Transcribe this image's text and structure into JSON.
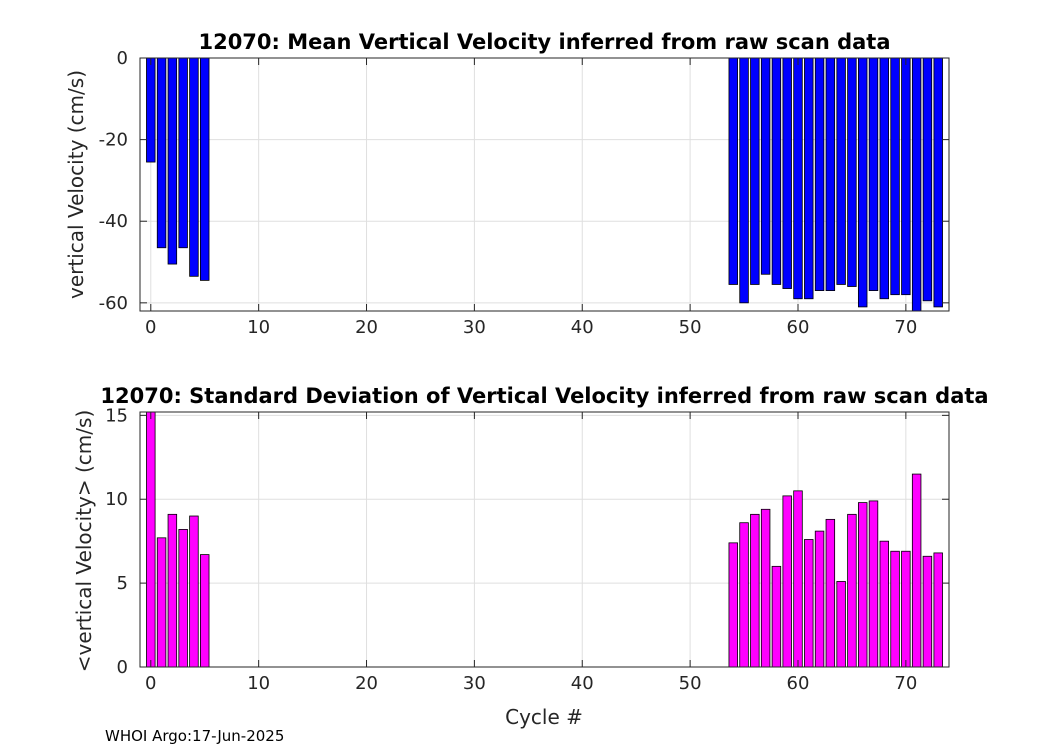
{
  "footer_text": "WHOI Argo:17-Jun-2025",
  "chart_data": [
    {
      "type": "bar",
      "title": "12070: Mean Vertical Velocity inferred from raw scan data",
      "xlabel": "",
      "ylabel": "vertical Velocity (cm/s)",
      "xlim": [
        -1,
        74
      ],
      "ylim": [
        -62,
        0
      ],
      "xticks": [
        0,
        10,
        20,
        30,
        40,
        50,
        60,
        70
      ],
      "yticks": [
        0,
        -20,
        -40,
        -60
      ],
      "grid": true,
      "bar_color": "#0000ff",
      "x": [
        0,
        1,
        2,
        3,
        4,
        5,
        54,
        55,
        56,
        57,
        58,
        59,
        60,
        61,
        62,
        63,
        64,
        65,
        66,
        67,
        68,
        69,
        70,
        71,
        72,
        73
      ],
      "values": [
        -25.5,
        -46.5,
        -50.5,
        -46.5,
        -53.5,
        -54.5,
        -55.5,
        -60,
        -55.5,
        -53,
        -55.5,
        -56.5,
        -59,
        -59,
        -57,
        -57,
        -55.5,
        -56,
        -61,
        -57,
        -59,
        -58,
        -58,
        -62,
        -59.5,
        -61
      ]
    },
    {
      "type": "bar",
      "title": "12070: Standard Deviation of Vertical Velocity inferred from raw scan data",
      "xlabel": "Cycle #",
      "ylabel": "<vertical Velocity> (cm/s)",
      "xlim": [
        -1,
        74
      ],
      "ylim": [
        0,
        15.2
      ],
      "xticks": [
        0,
        10,
        20,
        30,
        40,
        50,
        60,
        70
      ],
      "yticks": [
        0,
        5,
        10,
        15
      ],
      "grid": true,
      "bar_color": "#ff00ff",
      "x": [
        0,
        1,
        2,
        3,
        4,
        5,
        54,
        55,
        56,
        57,
        58,
        59,
        60,
        61,
        62,
        63,
        64,
        65,
        66,
        67,
        68,
        69,
        70,
        71,
        72,
        73
      ],
      "values": [
        15.5,
        7.7,
        9.1,
        8.2,
        9.0,
        6.7,
        7.4,
        8.6,
        9.1,
        9.4,
        6.0,
        10.2,
        10.5,
        7.6,
        8.1,
        8.8,
        5.1,
        9.1,
        9.8,
        9.9,
        7.5,
        6.9,
        6.9,
        11.5,
        6.6,
        6.8
      ]
    }
  ]
}
